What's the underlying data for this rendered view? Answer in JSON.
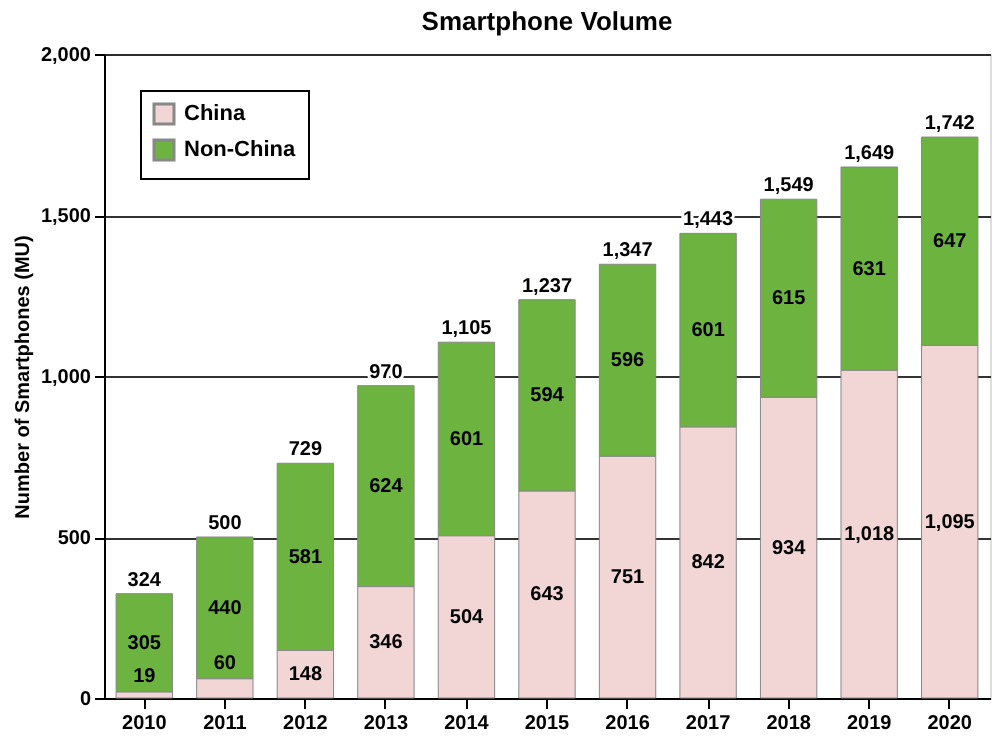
{
  "chart_data": {
    "type": "bar",
    "title": "Smartphone Volume",
    "ylabel": "Number of Smartphones (MU)",
    "categories": [
      "2010",
      "2011",
      "2012",
      "2013",
      "2014",
      "2015",
      "2016",
      "2017",
      "2018",
      "2019",
      "2020"
    ],
    "stacked": true,
    "series": [
      {
        "name": "China",
        "color": "#f2d5d5",
        "values": [
          19,
          60,
          148,
          346,
          504,
          643,
          751,
          842,
          934,
          1018,
          1095
        ],
        "value_labels": [
          "19",
          "60",
          "148",
          "346",
          "504",
          "643",
          "751",
          "842",
          "934",
          "1,018",
          "1,095"
        ]
      },
      {
        "name": "Non-China",
        "color": "#6db33f",
        "values": [
          305,
          440,
          581,
          624,
          601,
          594,
          596,
          601,
          615,
          631,
          647
        ],
        "value_labels": [
          "305",
          "440",
          "581",
          "624",
          "601",
          "594",
          "596",
          "601",
          "615",
          "631",
          "647"
        ]
      }
    ],
    "totals": [
      "324",
      "500",
      "729",
      "970",
      "1,105",
      "1,237",
      "1,347",
      "1,443",
      "1,549",
      "1,649",
      "1,742"
    ],
    "ylim": [
      0,
      2000
    ],
    "yticks": [
      0,
      500,
      {
        "value": 1000,
        "label": "1,000"
      },
      {
        "value": 1500,
        "label": "1,500"
      },
      {
        "value": 2000,
        "label": "2,000"
      }
    ],
    "grid": "y",
    "legend": "top left"
  }
}
